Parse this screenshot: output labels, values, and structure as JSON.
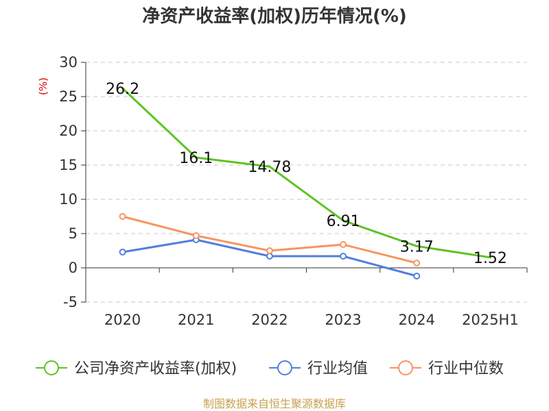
{
  "chart_data": {
    "type": "line",
    "title": "净资产收益率(加权)历年情况(%)",
    "ylabel": "(%)",
    "xlabel": "",
    "categories": [
      "2020",
      "2021",
      "2022",
      "2023",
      "2024",
      "2025H1"
    ],
    "ylim": [
      -5,
      30
    ],
    "yticks": [
      30,
      25,
      20,
      15,
      10,
      5,
      0,
      -5
    ],
    "grid": true,
    "legend_position": "bottom",
    "series": [
      {
        "name": "公司净资产收益率(加权)",
        "color": "#5dc323",
        "values": [
          26.2,
          16.1,
          14.78,
          6.91,
          3.17,
          1.52
        ],
        "labels": [
          "26.2",
          "16.1",
          "14.78",
          "6.91",
          "3.17",
          "1.52"
        ],
        "show_markers": false
      },
      {
        "name": "行业均值",
        "color": "#4f7fde",
        "values": [
          2.3,
          4.1,
          1.7,
          1.7,
          -1.2,
          null
        ],
        "show_markers": true
      },
      {
        "name": "行业中位数",
        "color": "#f89460",
        "values": [
          7.5,
          4.7,
          2.5,
          3.4,
          0.7,
          null
        ],
        "show_markers": true
      }
    ]
  },
  "source_text": "制图数据来自恒生聚源数据库"
}
